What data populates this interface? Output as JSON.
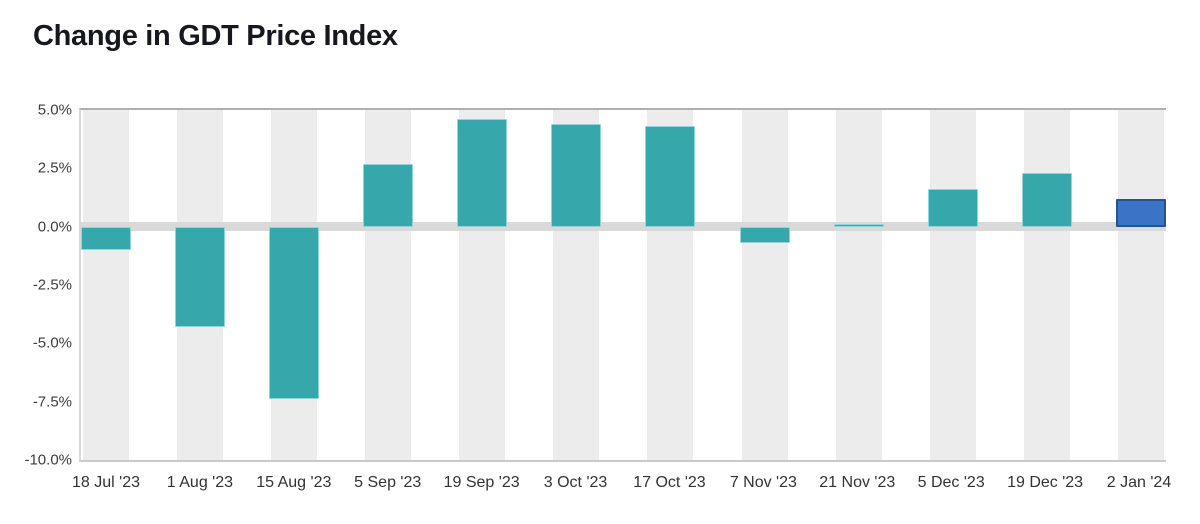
{
  "title": "Change in GDT Price Index",
  "chart_data": {
    "type": "bar",
    "title": "Change in GDT Price Index",
    "xlabel": "",
    "ylabel": "",
    "unit": "%",
    "categories": [
      "18 Jul '23",
      "1 Aug '23",
      "15 Aug '23",
      "5 Sep '23",
      "19 Sep '23",
      "3 Oct '23",
      "17 Oct '23",
      "7 Nov '23",
      "21 Nov '23",
      "5 Dec '23",
      "19 Dec '23",
      "2 Jan '24"
    ],
    "values": [
      -1.0,
      -4.3,
      -7.4,
      2.7,
      4.6,
      4.4,
      4.3,
      -0.7,
      0.1,
      1.6,
      2.3,
      1.2
    ],
    "ylim": [
      -10,
      5
    ],
    "yticks": [
      "5.0%",
      "2.5%",
      "0.0%",
      "-2.5%",
      "-5.0%",
      "-7.5%",
      "-10.0%"
    ],
    "grid": false,
    "legend": "none",
    "background_stripes": true,
    "bar_color": "#36a8ac",
    "highlight_color": "#3b74c6",
    "highlight_index": 11,
    "zero_line_color": "#d9d9d9",
    "stripe_color": "#ececec"
  }
}
